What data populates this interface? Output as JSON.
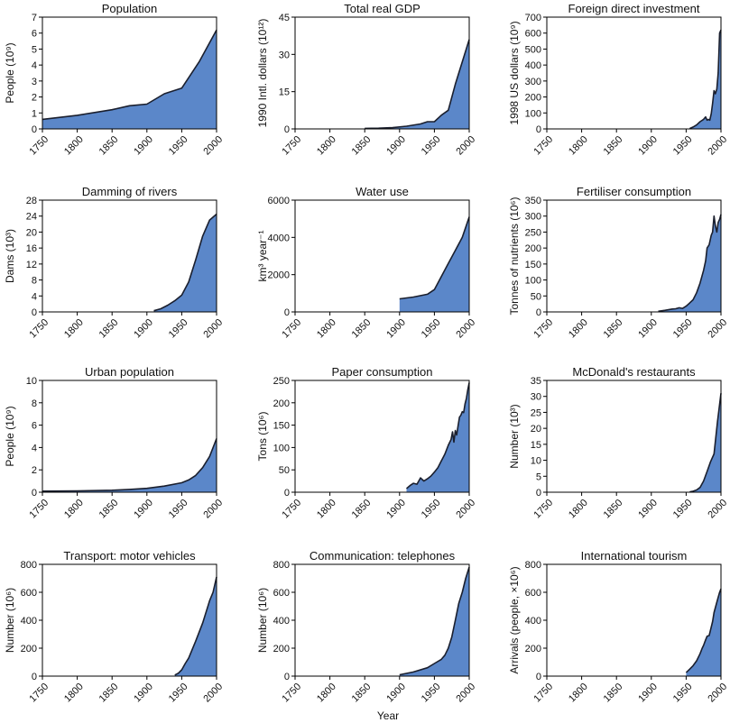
{
  "figure": {
    "xlabel": "Year"
  },
  "chart_data": [
    {
      "type": "area",
      "title": "Population",
      "ylabel": "People (10⁹)",
      "xlim": [
        1750,
        2000
      ],
      "ylim": [
        0,
        7
      ],
      "yticks": [
        0,
        1,
        2,
        3,
        4,
        5,
        6,
        7
      ],
      "xticks": [
        1750,
        1800,
        1850,
        1900,
        1950,
        2000
      ],
      "x": [
        1750,
        1800,
        1850,
        1875,
        1900,
        1925,
        1950,
        1975,
        2000
      ],
      "y": [
        0.6,
        0.85,
        1.2,
        1.45,
        1.55,
        2.2,
        2.55,
        4.2,
        6.2
      ]
    },
    {
      "type": "area",
      "title": "Total real GDP",
      "ylabel": "1990 Intl. dollars (10¹²)",
      "xlim": [
        1750,
        2000
      ],
      "ylim": [
        0,
        45
      ],
      "yticks": [
        0,
        15,
        30,
        45
      ],
      "xticks": [
        1750,
        1800,
        1850,
        1900,
        1950,
        2000
      ],
      "x": [
        1850,
        1870,
        1890,
        1910,
        1930,
        1940,
        1950,
        1960,
        1970,
        1980,
        1990,
        2000
      ],
      "y": [
        0.2,
        0.3,
        0.5,
        1.1,
        2.0,
        2.9,
        2.9,
        5.5,
        7.5,
        18,
        27,
        36
      ]
    },
    {
      "type": "area",
      "title": "Foreign direct investment",
      "ylabel": "1998 US dollars (10⁹)",
      "xlim": [
        1750,
        2000
      ],
      "ylim": [
        0,
        700
      ],
      "yticks": [
        0,
        100,
        200,
        300,
        400,
        500,
        600,
        700
      ],
      "xticks": [
        1750,
        1800,
        1850,
        1900,
        1950,
        2000
      ],
      "x": [
        1955,
        1960,
        1965,
        1970,
        1975,
        1978,
        1980,
        1982,
        1984,
        1986,
        1988,
        1990,
        1992,
        1994,
        1996,
        1998,
        2000
      ],
      "y": [
        2,
        12,
        25,
        45,
        60,
        75,
        55,
        60,
        55,
        95,
        160,
        240,
        220,
        250,
        350,
        600,
        620
      ]
    },
    {
      "type": "area",
      "title": "Damming of rivers",
      "ylabel": "Dams (10³)",
      "xlim": [
        1750,
        2000
      ],
      "ylim": [
        0,
        28
      ],
      "yticks": [
        0,
        4,
        8,
        12,
        16,
        20,
        24,
        28
      ],
      "xticks": [
        1750,
        1800,
        1850,
        1900,
        1950,
        2000
      ],
      "x": [
        1910,
        1920,
        1930,
        1940,
        1950,
        1960,
        1970,
        1980,
        1990,
        2000
      ],
      "y": [
        0.3,
        0.8,
        1.7,
        2.8,
        4.2,
        7.5,
        13,
        19,
        23,
        24.5
      ]
    },
    {
      "type": "area",
      "title": "Water use",
      "ylabel": "km³ year⁻¹",
      "xlim": [
        1750,
        2000
      ],
      "ylim": [
        0,
        6000
      ],
      "yticks": [
        0,
        2000,
        4000,
        6000
      ],
      "xticks": [
        1750,
        1800,
        1850,
        1900,
        1950,
        2000
      ],
      "x": [
        1900,
        1920,
        1940,
        1950,
        1960,
        1970,
        1980,
        1990,
        2000
      ],
      "y": [
        700,
        800,
        950,
        1200,
        1900,
        2600,
        3300,
        4000,
        5100
      ]
    },
    {
      "type": "area",
      "title": "Fertiliser consumption",
      "ylabel": "Tonnes of nutrients (10⁶)",
      "xlim": [
        1750,
        2000
      ],
      "ylim": [
        0,
        350
      ],
      "yticks": [
        0,
        50,
        100,
        150,
        200,
        250,
        300,
        350
      ],
      "xticks": [
        1750,
        1800,
        1850,
        1900,
        1950,
        2000
      ],
      "x": [
        1910,
        1920,
        1930,
        1935,
        1940,
        1945,
        1950,
        1955,
        1960,
        1965,
        1970,
        1975,
        1978,
        1980,
        1983,
        1986,
        1988,
        1990,
        1992,
        1994,
        1996,
        1998,
        2000
      ],
      "y": [
        2,
        5,
        9,
        10,
        13,
        11,
        18,
        28,
        38,
        60,
        90,
        130,
        160,
        200,
        210,
        240,
        250,
        300,
        270,
        250,
        280,
        290,
        305
      ]
    },
    {
      "type": "area",
      "title": "Urban population",
      "ylabel": "People (10⁹)",
      "xlim": [
        1750,
        2000
      ],
      "ylim": [
        0,
        10
      ],
      "yticks": [
        0,
        2,
        4,
        6,
        8,
        10
      ],
      "xticks": [
        1750,
        1800,
        1850,
        1900,
        1950,
        2000
      ],
      "x": [
        1750,
        1800,
        1850,
        1875,
        1900,
        1925,
        1950,
        1960,
        1970,
        1980,
        1990,
        2000
      ],
      "y": [
        0.1,
        0.12,
        0.18,
        0.25,
        0.35,
        0.55,
        0.85,
        1.1,
        1.5,
        2.2,
        3.2,
        4.8
      ]
    },
    {
      "type": "area",
      "title": "Paper consumption",
      "ylabel": "Tons (10⁶)",
      "xlim": [
        1750,
        2000
      ],
      "ylim": [
        0,
        250
      ],
      "yticks": [
        0,
        50,
        100,
        150,
        200,
        250
      ],
      "xticks": [
        1750,
        1800,
        1850,
        1900,
        1950,
        2000
      ],
      "x": [
        1910,
        1915,
        1920,
        1925,
        1930,
        1935,
        1940,
        1945,
        1950,
        1955,
        1960,
        1965,
        1970,
        1974,
        1976,
        1978,
        1980,
        1982,
        1984,
        1986,
        1988,
        1990,
        1992,
        1994,
        1996,
        1998,
        2000
      ],
      "y": [
        8,
        15,
        20,
        18,
        32,
        25,
        30,
        36,
        45,
        55,
        70,
        85,
        105,
        118,
        135,
        112,
        138,
        128,
        148,
        168,
        172,
        180,
        178,
        198,
        210,
        230,
        245
      ]
    },
    {
      "type": "area",
      "title": "McDonald's restaurants",
      "ylabel": "Number (10³)",
      "xlim": [
        1750,
        2000
      ],
      "ylim": [
        0,
        35
      ],
      "yticks": [
        0,
        5,
        10,
        15,
        20,
        25,
        30,
        35
      ],
      "xticks": [
        1750,
        1800,
        1850,
        1900,
        1950,
        2000
      ],
      "x": [
        1955,
        1960,
        1965,
        1970,
        1975,
        1980,
        1985,
        1990,
        1995,
        2000
      ],
      "y": [
        0.1,
        0.3,
        0.7,
        1.5,
        3.5,
        6.5,
        9.5,
        12,
        22,
        31
      ]
    },
    {
      "type": "area",
      "title": "Transport: motor vehicles",
      "ylabel": "Number (10⁶)",
      "xlim": [
        1750,
        2000
      ],
      "ylim": [
        0,
        800
      ],
      "yticks": [
        0,
        200,
        400,
        600,
        800
      ],
      "xticks": [
        1750,
        1800,
        1850,
        1900,
        1950,
        2000
      ],
      "x": [
        1940,
        1945,
        1950,
        1955,
        1960,
        1970,
        1980,
        1990,
        1995,
        2000
      ],
      "y": [
        8,
        20,
        45,
        90,
        130,
        250,
        380,
        540,
        600,
        710
      ]
    },
    {
      "type": "area",
      "title": "Communication: telephones",
      "ylabel": "Number (10⁶)",
      "xlim": [
        1750,
        2000
      ],
      "ylim": [
        0,
        800
      ],
      "yticks": [
        0,
        200,
        400,
        600,
        800
      ],
      "xticks": [
        1750,
        1800,
        1850,
        1900,
        1950,
        2000
      ],
      "x": [
        1900,
        1920,
        1940,
        1950,
        1960,
        1965,
        1970,
        1975,
        1980,
        1985,
        1990,
        1995,
        2000
      ],
      "y": [
        10,
        30,
        60,
        90,
        120,
        150,
        200,
        280,
        400,
        520,
        600,
        700,
        780
      ]
    },
    {
      "type": "area",
      "title": "International tourism",
      "ylabel": "Arrivals (people, ×10⁶)",
      "xlim": [
        1750,
        2000
      ],
      "ylim": [
        0,
        800
      ],
      "yticks": [
        0,
        200,
        400,
        600,
        800
      ],
      "xticks": [
        1750,
        1800,
        1850,
        1900,
        1950,
        2000
      ],
      "x": [
        1950,
        1955,
        1960,
        1965,
        1970,
        1973,
        1975,
        1978,
        1980,
        1983,
        1985,
        1988,
        1990,
        1993,
        1995,
        1998,
        2000
      ],
      "y": [
        25,
        50,
        75,
        110,
        160,
        200,
        220,
        260,
        285,
        290,
        330,
        390,
        455,
        510,
        545,
        600,
        625
      ]
    }
  ]
}
